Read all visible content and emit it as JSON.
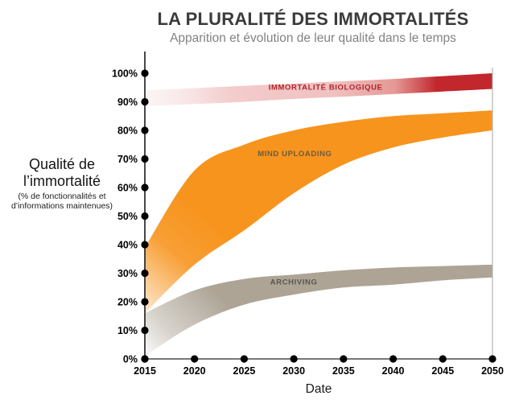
{
  "header": {
    "title": "LA PLURALITÉ DES IMMORTALITÉS",
    "subtitle": "Apparition et évolution de leur qualité dans le temps"
  },
  "y_axis": {
    "label_line1": "Qualité de",
    "label_line2": "l’immortalité",
    "sublabel_line1": "(% de fonctionnalités et",
    "sublabel_line2": "d’informations maintenues)",
    "ticks": [
      "0%",
      "10%",
      "20%",
      "30%",
      "40%",
      "50%",
      "60%",
      "70%",
      "80%",
      "90%",
      "100%"
    ],
    "tick_values": [
      0,
      10,
      20,
      30,
      40,
      50,
      60,
      70,
      80,
      90,
      100
    ]
  },
  "x_axis": {
    "label": "Date",
    "ticks": [
      "2015",
      "2020",
      "2025",
      "2030",
      "2035",
      "2040",
      "2045",
      "2050"
    ]
  },
  "chart_data": {
    "type": "area",
    "x": [
      2015,
      2020,
      2025,
      2030,
      2035,
      2040,
      2045,
      2050
    ],
    "xlim": [
      2015,
      2050
    ],
    "ylim": [
      0,
      100
    ],
    "grid": false,
    "legend": "labels drawn inside bands",
    "series": [
      {
        "name": "IMMORTALITÉ BIOLOGIQUE",
        "top": [
          94,
          94.8,
          95.6,
          96.4,
          97.2,
          98,
          99,
          100
        ],
        "bottom": [
          88.5,
          89.2,
          90,
          91,
          91.8,
          92.7,
          93.6,
          94.5
        ],
        "color": "#C1272D",
        "label_color": "#B2222B",
        "label_x": 2033.2,
        "label_y": 95.2,
        "fade": "pale-pink-to-solid-red-left-to-right"
      },
      {
        "name": "MIND UPLOADING",
        "top": [
          39,
          66,
          75,
          80,
          83,
          85,
          86,
          87
        ],
        "bottom": [
          16,
          33,
          45,
          58,
          68,
          74,
          77.5,
          80
        ],
        "color": "#F7941E",
        "label_color": "#6A5B3B",
        "label_x": 2030.1,
        "label_y": 72,
        "fade": "white-fade-at-lower-left"
      },
      {
        "name": "ARCHIVING",
        "top": [
          16,
          24,
          28,
          29.5,
          31,
          32,
          32.5,
          33
        ],
        "bottom": [
          1,
          12,
          19,
          22.5,
          25,
          26,
          27.5,
          28.5
        ],
        "color": "#ADA496",
        "label_color": "#5B564E",
        "label_x": 2030,
        "label_y": 27,
        "fade": "white-fade-at-lower-left"
      }
    ]
  },
  "colors": {
    "title": "#3b3b3c",
    "subtitle": "#828282",
    "axis": "#1a1a1a",
    "x_axis_line": "#4a4a4a",
    "right_border": "#b5b5b5",
    "tick_text": "#000000"
  }
}
